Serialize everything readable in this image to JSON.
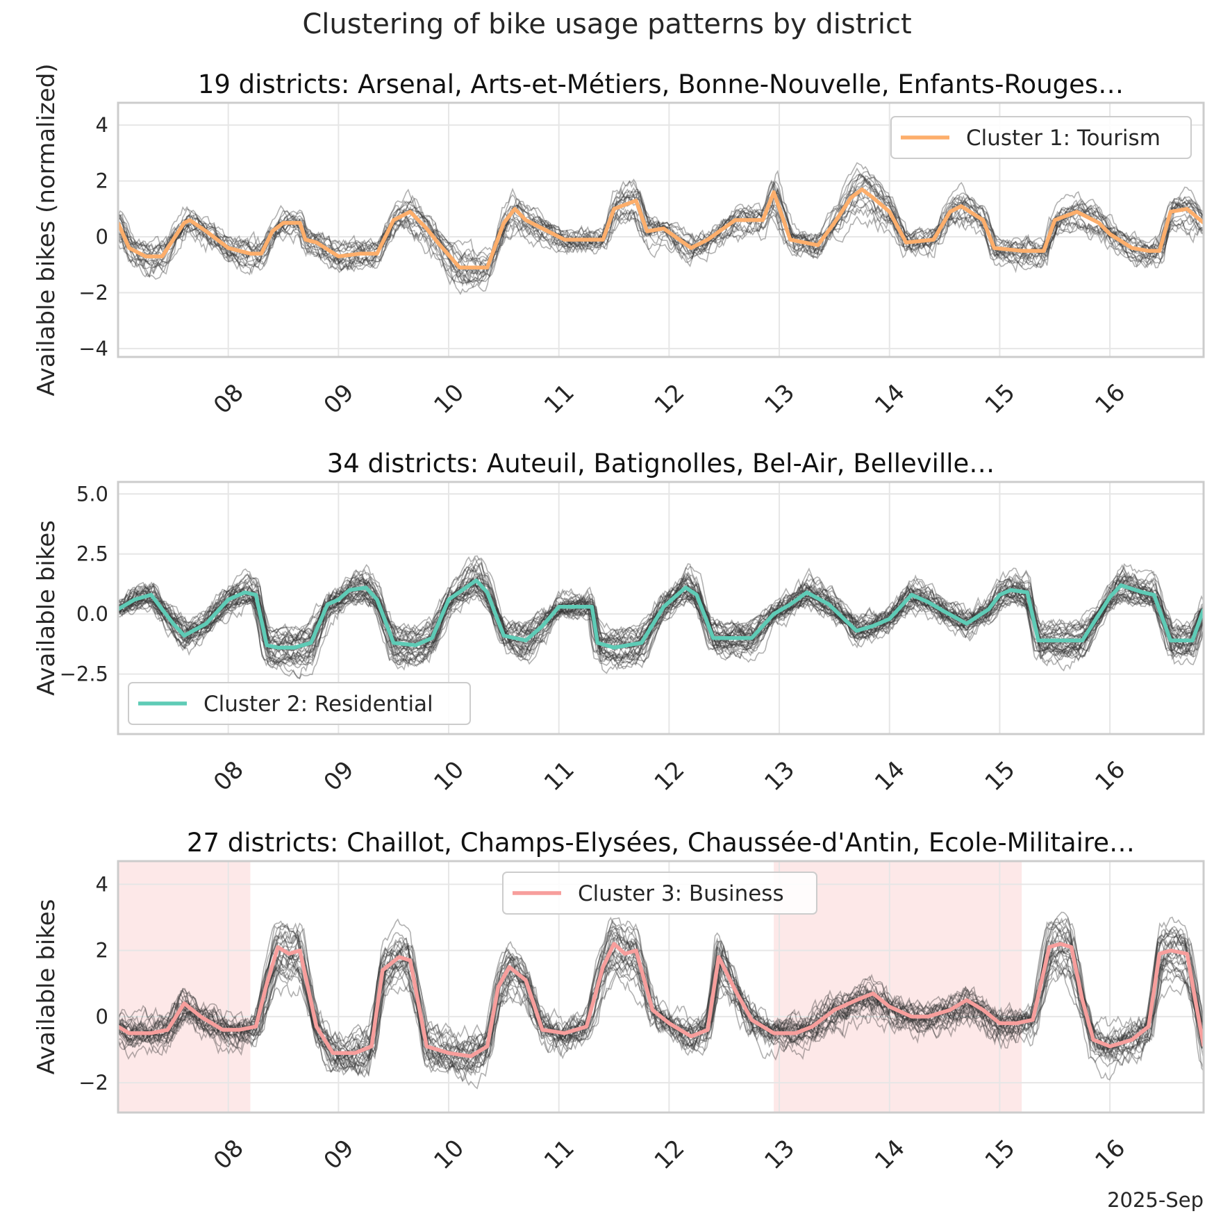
{
  "figure_title": "Clustering of bike usage patterns by district",
  "x_axis_offset_label": "2025-Sep",
  "colors": {
    "cluster1": "#fdae6b",
    "cluster2": "#5ecbb6",
    "cluster3": "#f79e9c",
    "members": "#333333",
    "span": "#fde8e8",
    "grid": "#e6e6e6",
    "spine": "#cccccc"
  },
  "chart_data": [
    {
      "type": "line",
      "title": "19 districts: Arsenal, Arts-et-Métiers, Bonne-Nouvelle, Enfants-Rouges…",
      "ylabel": "Available bikes (normalized)",
      "ylim": [
        -4.3,
        4.8
      ],
      "yticks": [
        -4,
        -2,
        0,
        2,
        4
      ],
      "ytick_labels": [
        "−4",
        "−2",
        "0",
        "2",
        "4"
      ],
      "xlim": [
        7.0,
        16.85
      ],
      "xticks": [
        8,
        9,
        10,
        11,
        12,
        13,
        14,
        15,
        16
      ],
      "xtick_labels": [
        "08",
        "09",
        "10",
        "11",
        "12",
        "13",
        "14",
        "15",
        "16"
      ],
      "legend": {
        "label": "Cluster 1: Tourism",
        "position": "upper right"
      },
      "member_count": 19,
      "series": [
        {
          "name": "Cluster 1: Tourism",
          "x": [
            7.0,
            7.1,
            7.25,
            7.4,
            7.5,
            7.6,
            7.65,
            7.8,
            8.0,
            8.2,
            8.3,
            8.4,
            8.5,
            8.65,
            8.7,
            8.8,
            9.0,
            9.2,
            9.35,
            9.5,
            9.65,
            9.8,
            9.9,
            10.1,
            10.35,
            10.5,
            10.6,
            10.7,
            10.9,
            11.05,
            11.4,
            11.5,
            11.7,
            11.8,
            11.95,
            12.2,
            12.35,
            12.6,
            12.85,
            12.95,
            13.1,
            13.35,
            13.5,
            13.65,
            13.75,
            13.85,
            14.0,
            14.15,
            14.4,
            14.55,
            14.65,
            14.85,
            14.95,
            15.2,
            15.3,
            15.4,
            15.5,
            15.7,
            15.9,
            16.0,
            16.2,
            16.35,
            16.45,
            16.55,
            16.7,
            16.85
          ],
          "y": [
            0.5,
            -0.4,
            -0.7,
            -0.7,
            -0.1,
            0.5,
            0.6,
            0.2,
            -0.4,
            -0.6,
            -0.6,
            0.2,
            0.5,
            0.5,
            -0.1,
            -0.2,
            -0.7,
            -0.6,
            -0.6,
            0.6,
            0.9,
            0.3,
            -0.2,
            -1.1,
            -1.1,
            0.5,
            1.0,
            0.6,
            0.2,
            -0.1,
            -0.1,
            1.0,
            1.3,
            0.2,
            0.3,
            -0.4,
            -0.1,
            0.6,
            0.6,
            1.6,
            -0.1,
            -0.3,
            0.5,
            1.4,
            1.7,
            1.4,
            0.9,
            -0.2,
            -0.1,
            0.9,
            1.1,
            0.6,
            -0.4,
            -0.5,
            -0.5,
            -0.5,
            0.6,
            0.9,
            0.5,
            0.1,
            -0.4,
            -0.5,
            -0.5,
            0.9,
            1.0,
            0.5
          ]
        }
      ]
    },
    {
      "type": "line",
      "title": "34 districts: Auteuil, Batignolles, Bel-Air, Belleville…",
      "ylabel": "Available bikes",
      "ylim": [
        -5.0,
        5.5
      ],
      "yticks": [
        -2.5,
        0.0,
        2.5,
        5.0
      ],
      "ytick_labels": [
        "−2.5",
        "0.0",
        "2.5",
        "5.0"
      ],
      "xlim": [
        7.0,
        16.85
      ],
      "xticks": [
        8,
        9,
        10,
        11,
        12,
        13,
        14,
        15,
        16
      ],
      "xtick_labels": [
        "08",
        "09",
        "10",
        "11",
        "12",
        "13",
        "14",
        "15",
        "16"
      ],
      "legend": {
        "label": "Cluster 2: Residential",
        "position": "lower left"
      },
      "member_count": 34,
      "series": [
        {
          "name": "Cluster 2: Residential",
          "x": [
            7.0,
            7.15,
            7.3,
            7.5,
            7.6,
            7.8,
            8.0,
            8.15,
            8.25,
            8.35,
            8.45,
            8.6,
            8.75,
            8.9,
            9.0,
            9.1,
            9.25,
            9.35,
            9.5,
            9.7,
            9.85,
            10.0,
            10.25,
            10.35,
            10.5,
            10.7,
            10.85,
            11.0,
            11.3,
            11.35,
            11.5,
            11.75,
            11.95,
            12.15,
            12.25,
            12.4,
            12.6,
            12.75,
            12.95,
            13.1,
            13.25,
            13.45,
            13.7,
            13.85,
            14.0,
            14.2,
            14.35,
            14.5,
            14.7,
            14.9,
            15.0,
            15.1,
            15.25,
            15.35,
            15.5,
            15.75,
            16.0,
            16.1,
            16.3,
            16.4,
            16.55,
            16.75,
            16.85
          ],
          "y": [
            0.2,
            0.6,
            0.8,
            -0.4,
            -0.9,
            -0.4,
            0.6,
            0.9,
            0.8,
            -1.3,
            -1.4,
            -1.4,
            -1.2,
            0.4,
            0.6,
            1.0,
            1.1,
            0.6,
            -1.2,
            -1.3,
            -1.0,
            0.6,
            1.4,
            0.9,
            -0.9,
            -1.1,
            -0.5,
            0.3,
            0.3,
            -1.2,
            -1.4,
            -1.2,
            0.3,
            1.1,
            0.8,
            -1.0,
            -1.0,
            -1.0,
            0.0,
            0.4,
            0.9,
            0.4,
            -0.7,
            -0.5,
            -0.2,
            0.8,
            0.5,
            0.1,
            -0.4,
            0.2,
            0.8,
            1.0,
            0.9,
            -1.1,
            -1.1,
            -1.1,
            0.7,
            1.2,
            0.9,
            0.8,
            -1.1,
            -1.1,
            0.2
          ]
        }
      ]
    },
    {
      "type": "line",
      "title": "27 districts: Chaillot, Champs-Elysées, Chaussée-d'Antin, Ecole-Militaire…",
      "ylabel": "Available bikes",
      "ylim": [
        -2.9,
        4.7
      ],
      "yticks": [
        -2,
        0,
        2,
        4
      ],
      "ytick_labels": [
        "−2",
        "0",
        "2",
        "4"
      ],
      "xlim": [
        7.0,
        16.85
      ],
      "xticks": [
        8,
        9,
        10,
        11,
        12,
        13,
        14,
        15,
        16
      ],
      "xtick_labels": [
        "08",
        "09",
        "10",
        "11",
        "12",
        "13",
        "14",
        "15",
        "16"
      ],
      "legend": {
        "label": "Cluster 3: Business",
        "position": "upper center"
      },
      "highlight_spans": [
        [
          7.0,
          8.2
        ],
        [
          12.95,
          15.2
        ]
      ],
      "member_count": 27,
      "series": [
        {
          "name": "Cluster 3: Business",
          "x": [
            7.0,
            7.1,
            7.3,
            7.45,
            7.6,
            7.75,
            7.95,
            8.1,
            8.25,
            8.35,
            8.45,
            8.55,
            8.65,
            8.8,
            8.95,
            9.15,
            9.3,
            9.4,
            9.55,
            9.65,
            9.8,
            10.0,
            10.2,
            10.35,
            10.45,
            10.55,
            10.7,
            10.85,
            11.05,
            11.25,
            11.4,
            11.5,
            11.6,
            11.7,
            11.85,
            12.0,
            12.2,
            12.35,
            12.45,
            12.6,
            12.75,
            12.95,
            13.15,
            13.3,
            13.5,
            13.7,
            13.85,
            14.0,
            14.2,
            14.35,
            14.55,
            14.7,
            14.85,
            15.0,
            15.15,
            15.3,
            15.45,
            15.55,
            15.65,
            15.75,
            15.85,
            16.0,
            16.2,
            16.35,
            16.45,
            16.55,
            16.7,
            16.85
          ],
          "y": [
            -0.3,
            -0.5,
            -0.5,
            -0.4,
            0.4,
            0.0,
            -0.4,
            -0.4,
            -0.3,
            1.0,
            2.1,
            1.9,
            2.0,
            -0.3,
            -1.1,
            -1.1,
            -0.9,
            1.4,
            1.8,
            1.7,
            -0.9,
            -1.1,
            -1.2,
            -0.9,
            0.9,
            1.5,
            1.1,
            -0.4,
            -0.5,
            -0.3,
            1.5,
            2.2,
            1.9,
            2.0,
            0.2,
            -0.2,
            -0.6,
            -0.4,
            1.8,
            0.8,
            -0.1,
            -0.5,
            -0.5,
            -0.3,
            0.2,
            0.5,
            0.7,
            0.3,
            0.0,
            0.0,
            0.2,
            0.5,
            0.2,
            -0.2,
            -0.2,
            -0.1,
            2.1,
            2.2,
            2.1,
            0.5,
            -0.7,
            -0.9,
            -0.7,
            -0.3,
            1.9,
            2.0,
            1.9,
            -0.9
          ]
        }
      ]
    }
  ]
}
